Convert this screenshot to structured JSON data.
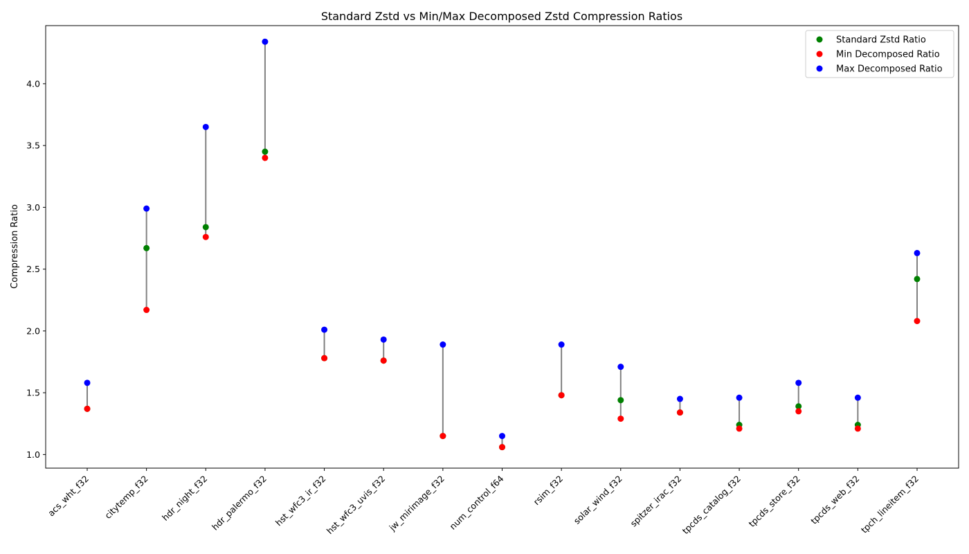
{
  "chart_data": {
    "type": "scatter",
    "title": "Standard Zstd vs Min/Max Decomposed Zstd Compression Ratios",
    "xlabel": "",
    "ylabel": "Compression Ratio",
    "categories": [
      "acs_wht_f32",
      "citytemp_f32",
      "hdr_night_f32",
      "hdr_palermo_f32",
      "hst_wfc3_ir_f32",
      "hst_wfc3_uvis_f32",
      "jw_mirimage_f32",
      "num_control_f64",
      "rsim_f32",
      "solar_wind_f32",
      "spitzer_irac_f32",
      "tpcds_catalog_f32",
      "tpcds_store_f32",
      "tpcds_web_f32",
      "tpch_lineitem_f32"
    ],
    "ylim": [
      0.89,
      4.47
    ],
    "yticks": [
      1.0,
      1.5,
      2.0,
      2.5,
      3.0,
      3.5,
      4.0
    ],
    "ytick_labels": [
      "1.0",
      "1.5",
      "2.0",
      "2.5",
      "3.0",
      "3.5",
      "4.0"
    ],
    "grid": false,
    "legend_position": "top-right",
    "range_line_color": "#808080",
    "series": [
      {
        "name": "Standard Zstd Ratio",
        "color": "#008000",
        "values": [
          1.37,
          2.67,
          2.84,
          3.45,
          1.78,
          1.76,
          1.15,
          1.06,
          1.48,
          1.44,
          1.34,
          1.24,
          1.39,
          1.24,
          2.42
        ]
      },
      {
        "name": "Min Decomposed Ratio",
        "color": "#ff0000",
        "values": [
          1.37,
          2.17,
          2.76,
          3.4,
          1.78,
          1.76,
          1.15,
          1.06,
          1.48,
          1.29,
          1.34,
          1.21,
          1.35,
          1.21,
          2.08
        ]
      },
      {
        "name": "Max Decomposed Ratio",
        "color": "#0000ff",
        "values": [
          1.58,
          2.99,
          3.65,
          4.34,
          2.01,
          1.93,
          1.89,
          1.15,
          1.89,
          1.71,
          1.45,
          1.46,
          1.58,
          1.46,
          2.63
        ]
      }
    ]
  }
}
